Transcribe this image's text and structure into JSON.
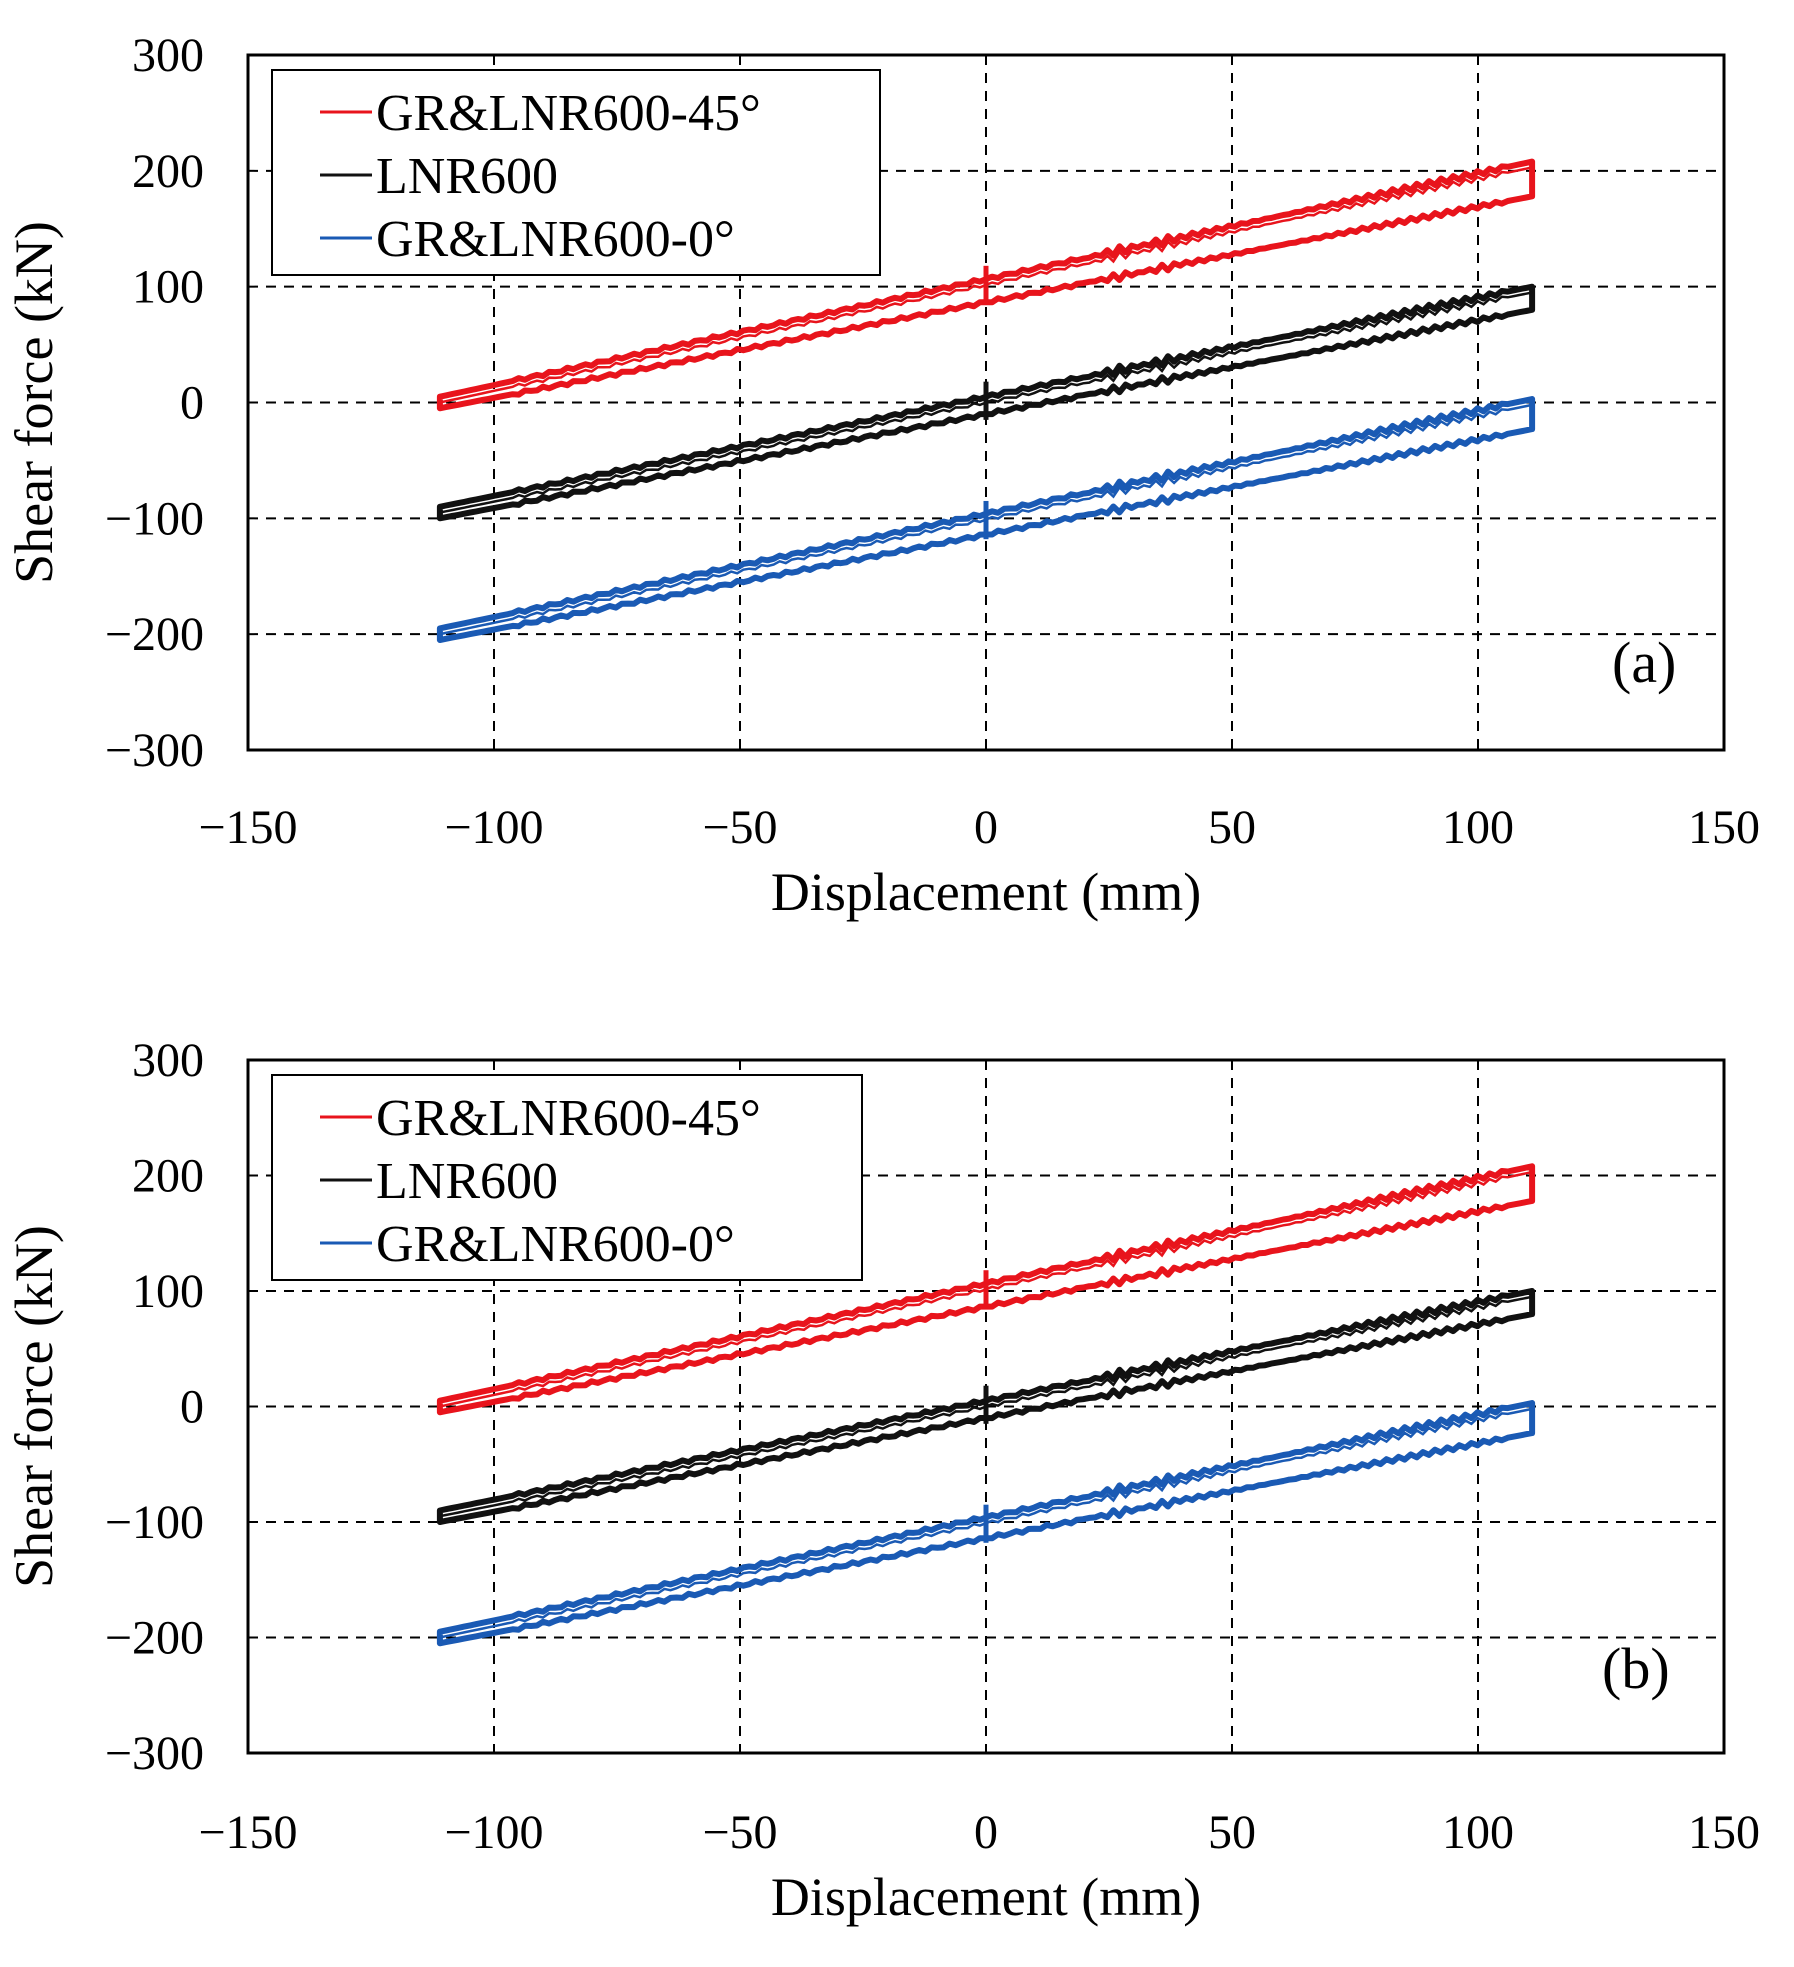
{
  "colors": {
    "series_45": "#e8141c",
    "series_lnr": "#111111",
    "series_0": "#1a5ab4",
    "axis": "#000000",
    "grid": "#000000",
    "background": "#ffffff"
  },
  "chart_data": [
    {
      "type": "line",
      "panel_label": "(a)",
      "xlabel": "Displacement (mm)",
      "ylabel": "Shear force (kN)",
      "xlim": [
        -150,
        150
      ],
      "ylim": [
        -300,
        300
      ],
      "xticks": [
        -150,
        -100,
        -50,
        0,
        50,
        100,
        150
      ],
      "yticks": [
        -300,
        -200,
        -100,
        0,
        100,
        200,
        300
      ],
      "xtick_labels": [
        "−150",
        "−100",
        "−50",
        "0",
        "50",
        "100",
        "150"
      ],
      "ytick_labels": [
        "−300",
        "−200",
        "−100",
        "0",
        "100",
        "200",
        "300"
      ],
      "grid": "dashed",
      "legend_position": "top-left",
      "series": [
        {
          "name": "GR&LNR600-45°",
          "color": "#e8141c",
          "displacement_range": [
            -111,
            111
          ],
          "upper_start": 5,
          "upper_end": 208,
          "lower_start": -5,
          "lower_end": 178,
          "jump_at_zero": [
            118,
            88
          ]
        },
        {
          "name": "LNR600",
          "color": "#111111",
          "displacement_range": [
            -111,
            111
          ],
          "upper_start": -90,
          "upper_end": 100,
          "lower_start": -100,
          "lower_end": 80,
          "jump_at_zero": [
            18,
            -15
          ]
        },
        {
          "name": "GR&LNR600-0°",
          "color": "#1a5ab4",
          "displacement_range": [
            -111,
            111
          ],
          "upper_start": -195,
          "upper_end": 3,
          "lower_start": -205,
          "lower_end": -23,
          "jump_at_zero": [
            -85,
            -118
          ]
        }
      ]
    },
    {
      "type": "line",
      "panel_label": "(b)",
      "xlabel": "Displacement (mm)",
      "ylabel": "Shear force (kN)",
      "xlim": [
        -150,
        150
      ],
      "ylim": [
        -300,
        300
      ],
      "xticks": [
        -150,
        -100,
        -50,
        0,
        50,
        100,
        150
      ],
      "yticks": [
        -300,
        -200,
        -100,
        0,
        100,
        200,
        300
      ],
      "xtick_labels": [
        "−150",
        "−100",
        "−50",
        "0",
        "50",
        "100",
        "150"
      ],
      "ytick_labels": [
        "−300",
        "−200",
        "−100",
        "0",
        "100",
        "200",
        "300"
      ],
      "grid": "dashed",
      "legend_position": "top-left",
      "series": [
        {
          "name": "GR&LNR600-45°",
          "color": "#e8141c",
          "displacement_range": [
            -111,
            111
          ],
          "upper_start": 5,
          "upper_end": 208,
          "lower_start": -5,
          "lower_end": 178,
          "jump_at_zero": [
            118,
            88
          ]
        },
        {
          "name": "LNR600",
          "color": "#111111",
          "displacement_range": [
            -111,
            111
          ],
          "upper_start": -90,
          "upper_end": 100,
          "lower_start": -100,
          "lower_end": 80,
          "jump_at_zero": [
            18,
            -15
          ]
        },
        {
          "name": "GR&LNR600-0°",
          "color": "#1a5ab4",
          "displacement_range": [
            -111,
            111
          ],
          "upper_start": -195,
          "upper_end": 3,
          "lower_start": -205,
          "lower_end": -23,
          "jump_at_zero": [
            -85,
            -118
          ]
        }
      ]
    }
  ]
}
